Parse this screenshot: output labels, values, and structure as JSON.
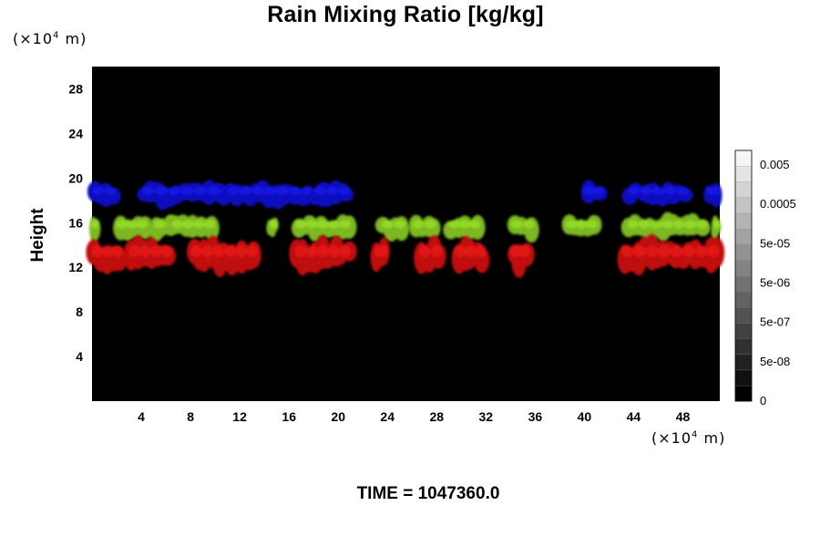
{
  "title": "Rain Mixing Ratio [kg/kg]",
  "y_unit": {
    "prefix": "(×10",
    "exp": "4",
    "suffix": " m)"
  },
  "x_unit": {
    "prefix": "(×10",
    "exp": "4",
    "suffix": " m)"
  },
  "ylabel": "Height",
  "time_label": "TIME = 1047360.0",
  "chart_data": {
    "type": "heatmap",
    "title": "Rain Mixing Ratio [kg/kg]",
    "xlabel": "",
    "ylabel": "Height",
    "x_unit": "×10^4 m",
    "y_unit": "×10^4 m",
    "xlim": [
      0,
      51
    ],
    "ylim": [
      0,
      30
    ],
    "x_ticks": [
      4,
      8,
      12,
      16,
      20,
      24,
      28,
      32,
      36,
      40,
      44,
      48
    ],
    "y_ticks": [
      4,
      8,
      12,
      16,
      20,
      24,
      28
    ],
    "background": "#000000",
    "colorbar": {
      "labels": [
        "0",
        "5e-08",
        "5e-07",
        "5e-06",
        "5e-05",
        "0.0005",
        "0.005"
      ],
      "levels": 16,
      "color_low": "#000000",
      "color_high": "#f4f4f4"
    },
    "regions": [
      {
        "color": "#1010c0",
        "band": "upper",
        "height_range": [
          17.5,
          19.6
        ],
        "x_spans": [
          [
            0,
            2
          ],
          [
            4,
            11.5
          ],
          [
            11,
            19
          ],
          [
            18,
            21
          ],
          [
            40,
            41.5
          ],
          [
            43.5,
            48.5
          ],
          [
            50,
            51
          ]
        ]
      },
      {
        "color": "#7cb820",
        "band": "middle",
        "height_range": [
          14.5,
          16.6
        ],
        "x_spans": [
          [
            0,
            0.5
          ],
          [
            2,
            4.5
          ],
          [
            5,
            7
          ],
          [
            6.5,
            10
          ],
          [
            14.5,
            15
          ],
          [
            16.5,
            21
          ],
          [
            23.5,
            25.5
          ],
          [
            26,
            28
          ],
          [
            29,
            31.5
          ],
          [
            34,
            36
          ],
          [
            38.5,
            41
          ],
          [
            43.5,
            50
          ],
          [
            50.5,
            51
          ]
        ]
      },
      {
        "color": "#c01010",
        "band": "lower",
        "height_range": [
          11.5,
          14.5
        ],
        "x_spans": [
          [
            0,
            2.5
          ],
          [
            3,
            6.5
          ],
          [
            8,
            13.5
          ],
          [
            16.5,
            21
          ],
          [
            23,
            24
          ],
          [
            26.5,
            28.5
          ],
          [
            29.5,
            32
          ],
          [
            34,
            35.5
          ],
          [
            43,
            51
          ]
        ]
      }
    ]
  }
}
